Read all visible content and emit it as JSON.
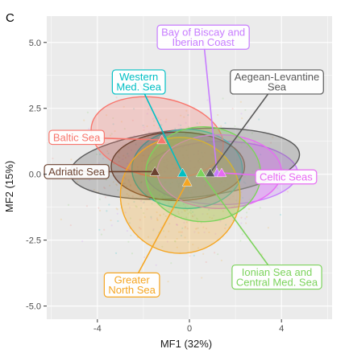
{
  "panel_letter": "C",
  "chart_data": {
    "type": "scatter",
    "xlabel": "MF1 (32%)",
    "ylabel": "MF2 (15%)",
    "xlim": [
      -6.2,
      6.2
    ],
    "ylim": [
      -5.5,
      6.0
    ],
    "x_ticks": [
      -4,
      0,
      4
    ],
    "x_tick_labels": [
      "-4",
      "0",
      "4"
    ],
    "y_ticks": [
      -5.0,
      -2.5,
      0.0,
      2.5,
      5.0
    ],
    "y_tick_labels": [
      "-5.0",
      "-2.5",
      "0.0",
      "2.5",
      "5.0"
    ],
    "grid": true,
    "background": "#ebebeb",
    "regions": [
      {
        "name": "Bay of Biscay and\nIberian Coast",
        "lines": [
          "Bay of Biscay and",
          "Iberian Coast"
        ],
        "color": "#c77cff",
        "centroid": [
          1.2,
          0.05
        ],
        "ellipse": {
          "cx": 1.4,
          "cy": 0.05,
          "rx": 3.3,
          "ry": 1.2,
          "angle": 0
        },
        "label_at": [
          0.6,
          5.2
        ]
      },
      {
        "name": "Aegean-Levantine Sea",
        "lines": [
          "Aegean-Levantine",
          "Sea"
        ],
        "color": "#595959",
        "centroid": [
          0.9,
          0.05
        ],
        "ellipse": {
          "cx": -0.2,
          "cy": 0.4,
          "rx": 5.0,
          "ry": 1.3,
          "angle": 5
        },
        "label_at": [
          3.8,
          3.5
        ]
      },
      {
        "name": "Western Med. Sea",
        "lines": [
          "Western",
          "Med. Sea"
        ],
        "color": "#00bfc4",
        "centroid": [
          -0.3,
          0.05
        ],
        "ellipse": {
          "cx": -0.1,
          "cy": 0.2,
          "rx": 2.4,
          "ry": 1.5,
          "angle": 0
        },
        "label_at": [
          -2.2,
          3.5
        ]
      },
      {
        "name": "Baltic Sea",
        "lines": [
          "Baltic Sea"
        ],
        "color": "#f8766d",
        "centroid": [
          -1.2,
          1.3
        ],
        "ellipse": {
          "cx": -1.4,
          "cy": 1.4,
          "rx": 2.9,
          "ry": 1.5,
          "angle": -10
        },
        "label_at": [
          -4.9,
          1.4
        ]
      },
      {
        "name": "Adriatic Sea",
        "lines": [
          "Adriatic Sea"
        ],
        "color": "#6b4230",
        "centroid": [
          -1.5,
          0.1
        ],
        "ellipse": {
          "cx": -0.5,
          "cy": 0.3,
          "rx": 2.9,
          "ry": 1.3,
          "angle": 0
        },
        "label_at": [
          -4.9,
          0.1
        ]
      },
      {
        "name": "Celtic Seas",
        "lines": [
          "Celtic Seas"
        ],
        "color": "#e76bf3",
        "centroid": [
          1.4,
          0.05
        ],
        "ellipse": {
          "cx": 1.3,
          "cy": 0.1,
          "rx": 2.7,
          "ry": 1.4,
          "angle": 0
        },
        "label_at": [
          4.2,
          -0.1
        ]
      },
      {
        "name": "Greater North Sea",
        "lines": [
          "Greater",
          "North Sea"
        ],
        "color": "#f5a623",
        "centroid": [
          -0.1,
          -0.3
        ],
        "ellipse": {
          "cx": -0.4,
          "cy": -0.8,
          "rx": 2.6,
          "ry": 2.2,
          "angle": 0
        },
        "label_at": [
          -2.5,
          -4.2
        ]
      },
      {
        "name": "Ionian Sea and\nCentral Med. Sea",
        "lines": [
          "Ionian Sea and",
          "Central Med. Sea"
        ],
        "color": "#7cd35c",
        "centroid": [
          0.5,
          0.05
        ],
        "ellipse": {
          "cx": 0.6,
          "cy": 0.0,
          "rx": 2.5,
          "ry": 1.8,
          "angle": 0
        },
        "label_at": [
          3.8,
          -3.9
        ]
      }
    ]
  }
}
